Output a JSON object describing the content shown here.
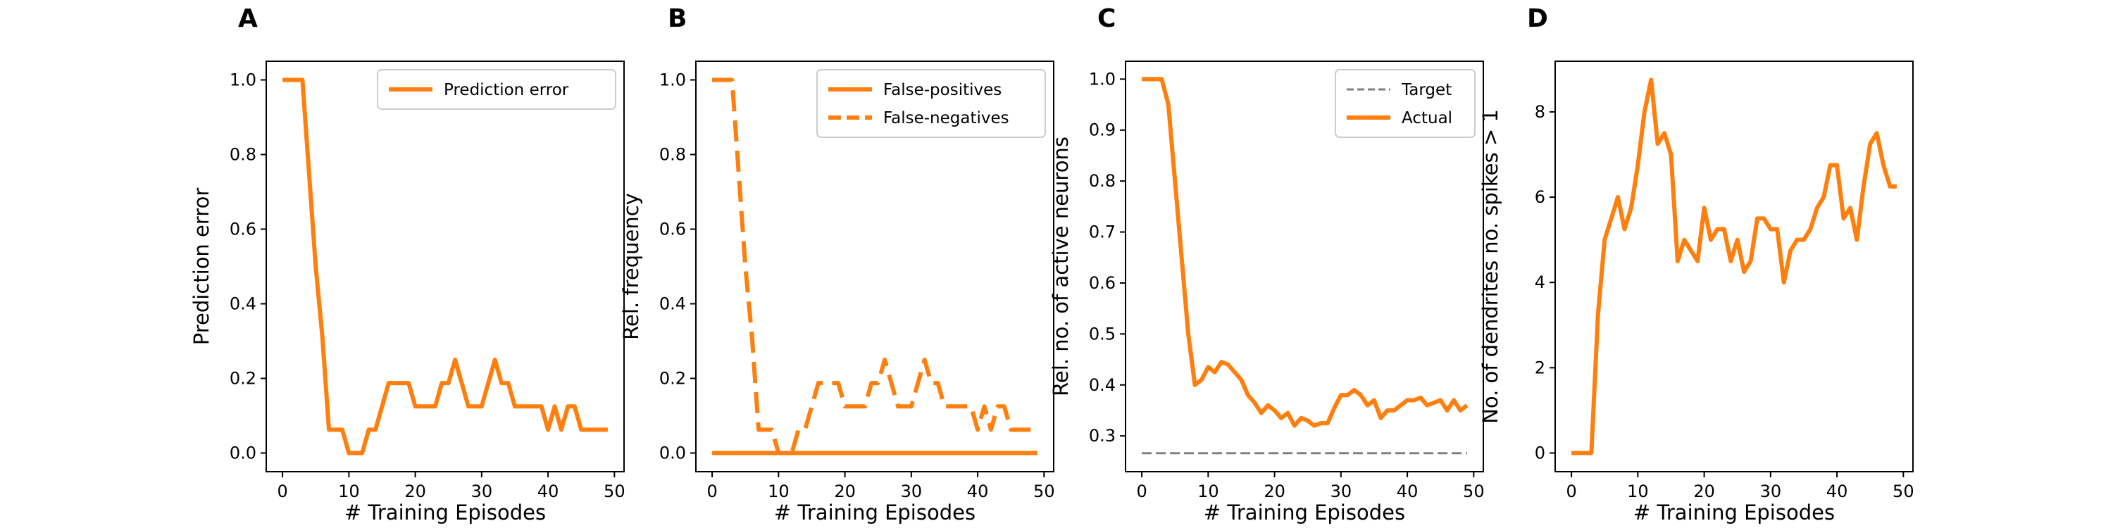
{
  "chart_data": [
    {
      "panel_label": "A",
      "type": "line",
      "xlabel": "# Training Episodes",
      "ylabel": "Prediction error",
      "xlim": [
        -2.45,
        51.45
      ],
      "ylim": [
        -0.05,
        1.05
      ],
      "xticks": [
        0,
        10,
        20,
        30,
        40,
        50
      ],
      "yticks": [
        0.0,
        0.2,
        0.4,
        0.6,
        0.8,
        1.0
      ],
      "ytick_labels": [
        "0.0",
        "0.2",
        "0.4",
        "0.6",
        "0.8",
        "1.0"
      ],
      "legend": "top-right",
      "series": [
        {
          "name": "Prediction error",
          "style": "solid",
          "color": "#ff7f0e",
          "x": [
            0,
            1,
            2,
            3,
            4,
            5,
            6,
            7,
            8,
            9,
            10,
            11,
            12,
            13,
            14,
            15,
            16,
            17,
            18,
            19,
            20,
            21,
            22,
            23,
            24,
            25,
            26,
            27,
            28,
            29,
            30,
            31,
            32,
            33,
            34,
            35,
            36,
            37,
            38,
            39,
            40,
            41,
            42,
            43,
            44,
            45,
            46,
            47,
            48,
            49
          ],
          "y": [
            1.0,
            1.0,
            1.0,
            1.0,
            0.75,
            0.5,
            0.3125,
            0.0625,
            0.0625,
            0.0625,
            0.0,
            0.0,
            0.0,
            0.0625,
            0.0625,
            0.125,
            0.1875,
            0.1875,
            0.1875,
            0.1875,
            0.125,
            0.125,
            0.125,
            0.125,
            0.1875,
            0.1875,
            0.25,
            0.1875,
            0.125,
            0.125,
            0.125,
            0.1875,
            0.25,
            0.1875,
            0.1875,
            0.125,
            0.125,
            0.125,
            0.125,
            0.125,
            0.0625,
            0.125,
            0.0625,
            0.125,
            0.125,
            0.0625,
            0.0625,
            0.0625,
            0.0625,
            0.0625
          ]
        }
      ]
    },
    {
      "panel_label": "B",
      "type": "line",
      "xlabel": "# Training Episodes",
      "ylabel": "Rel. frequency",
      "xlim": [
        -2.45,
        51.45
      ],
      "ylim": [
        -0.05,
        1.05
      ],
      "xticks": [
        0,
        10,
        20,
        30,
        40,
        50
      ],
      "yticks": [
        0.0,
        0.2,
        0.4,
        0.6,
        0.8,
        1.0
      ],
      "ytick_labels": [
        "0.0",
        "0.2",
        "0.4",
        "0.6",
        "0.8",
        "1.0"
      ],
      "legend": "top-right",
      "series": [
        {
          "name": "False-positives",
          "style": "solid",
          "color": "#ff7f0e",
          "x": [
            0,
            49
          ],
          "y": [
            0.0,
            0.0
          ]
        },
        {
          "name": "False-negatives",
          "style": "dashed",
          "color": "#ff7f0e",
          "x": [
            0,
            1,
            2,
            3,
            4,
            5,
            6,
            7,
            8,
            9,
            10,
            11,
            12,
            13,
            14,
            15,
            16,
            17,
            18,
            19,
            20,
            21,
            22,
            23,
            24,
            25,
            26,
            27,
            28,
            29,
            30,
            31,
            32,
            33,
            34,
            35,
            36,
            37,
            38,
            39,
            40,
            41,
            42,
            43,
            44,
            45,
            46,
            47,
            48,
            49
          ],
          "y": [
            1.0,
            1.0,
            1.0,
            1.0,
            0.75,
            0.5,
            0.3125,
            0.0625,
            0.0625,
            0.0625,
            0.0,
            0.0,
            0.0,
            0.0625,
            0.0625,
            0.125,
            0.1875,
            0.1875,
            0.1875,
            0.1875,
            0.125,
            0.125,
            0.125,
            0.125,
            0.1875,
            0.1875,
            0.25,
            0.1875,
            0.125,
            0.125,
            0.125,
            0.1875,
            0.25,
            0.1875,
            0.1875,
            0.125,
            0.125,
            0.125,
            0.125,
            0.125,
            0.0625,
            0.125,
            0.0625,
            0.125,
            0.125,
            0.0625,
            0.0625,
            0.0625,
            0.0625,
            0.0625
          ]
        }
      ]
    },
    {
      "panel_label": "C",
      "type": "line",
      "xlabel": "# Training Episodes",
      "ylabel": "Rel. no. of active neurons",
      "xlim": [
        -2.45,
        51.45
      ],
      "ylim": [
        0.2298,
        1.035
      ],
      "xticks": [
        0,
        10,
        20,
        30,
        40,
        50
      ],
      "yticks": [
        0.3,
        0.4,
        0.5,
        0.6,
        0.7,
        0.8,
        0.9,
        1.0
      ],
      "ytick_labels": [
        "0.3",
        "0.4",
        "0.5",
        "0.6",
        "0.7",
        "0.8",
        "0.9",
        "1.0"
      ],
      "legend": "top-right",
      "series": [
        {
          "name": "Target",
          "style": "dashed-thin",
          "color": "#808080",
          "x": [
            0,
            49
          ],
          "y": [
            0.266,
            0.266
          ]
        },
        {
          "name": "Actual",
          "style": "solid",
          "color": "#ff7f0e",
          "x": [
            0,
            1,
            2,
            3,
            4,
            5,
            6,
            7,
            8,
            9,
            10,
            11,
            12,
            13,
            14,
            15,
            16,
            17,
            18,
            19,
            20,
            21,
            22,
            23,
            24,
            25,
            26,
            27,
            28,
            29,
            30,
            31,
            32,
            33,
            34,
            35,
            36,
            37,
            38,
            39,
            40,
            41,
            42,
            43,
            44,
            45,
            46,
            47,
            48,
            49
          ],
          "y": [
            1.0,
            1.0,
            1.0,
            1.0,
            0.95,
            0.8,
            0.65,
            0.5,
            0.4,
            0.41,
            0.435,
            0.425,
            0.445,
            0.44,
            0.425,
            0.41,
            0.38,
            0.365,
            0.345,
            0.36,
            0.35,
            0.335,
            0.345,
            0.32,
            0.335,
            0.33,
            0.32,
            0.325,
            0.325,
            0.355,
            0.38,
            0.38,
            0.39,
            0.38,
            0.36,
            0.37,
            0.335,
            0.35,
            0.35,
            0.36,
            0.37,
            0.37,
            0.375,
            0.36,
            0.365,
            0.37,
            0.35,
            0.37,
            0.35,
            0.36
          ]
        }
      ]
    },
    {
      "panel_label": "D",
      "type": "line",
      "xlabel": "# Training Episodes",
      "ylabel": "No. of dendrites no. spikes > 1",
      "xlim": [
        -2.45,
        51.45
      ],
      "ylim": [
        -0.4375,
        9.1875
      ],
      "xticks": [
        0,
        10,
        20,
        30,
        40,
        50
      ],
      "yticks": [
        0,
        2,
        4,
        6,
        8
      ],
      "ytick_labels": [
        "0",
        "2",
        "4",
        "6",
        "8"
      ],
      "legend": "none",
      "series": [
        {
          "style": "solid",
          "color": "#ff7f0e",
          "x": [
            0,
            1,
            2,
            3,
            4,
            5,
            6,
            7,
            8,
            9,
            10,
            11,
            12,
            13,
            14,
            15,
            16,
            17,
            18,
            19,
            20,
            21,
            22,
            23,
            24,
            25,
            26,
            27,
            28,
            29,
            30,
            31,
            32,
            33,
            34,
            35,
            36,
            37,
            38,
            39,
            40,
            41,
            42,
            43,
            44,
            45,
            46,
            47,
            48,
            49
          ],
          "y": [
            0,
            0,
            0,
            0,
            3.25,
            5,
            5.5,
            6,
            5.25,
            5.75,
            6.75,
            8,
            8.75,
            7.25,
            7.5,
            7,
            4.5,
            5,
            4.75,
            4.5,
            5.75,
            5,
            5.25,
            5.25,
            4.5,
            5,
            4.25,
            4.5,
            5.5,
            5.5,
            5.25,
            5.25,
            4,
            4.75,
            5,
            5,
            5.25,
            5.75,
            6,
            6.75,
            6.75,
            5.5,
            5.75,
            5,
            6.25,
            7.25,
            7.5,
            6.75,
            6.25,
            6.25
          ]
        }
      ]
    }
  ]
}
